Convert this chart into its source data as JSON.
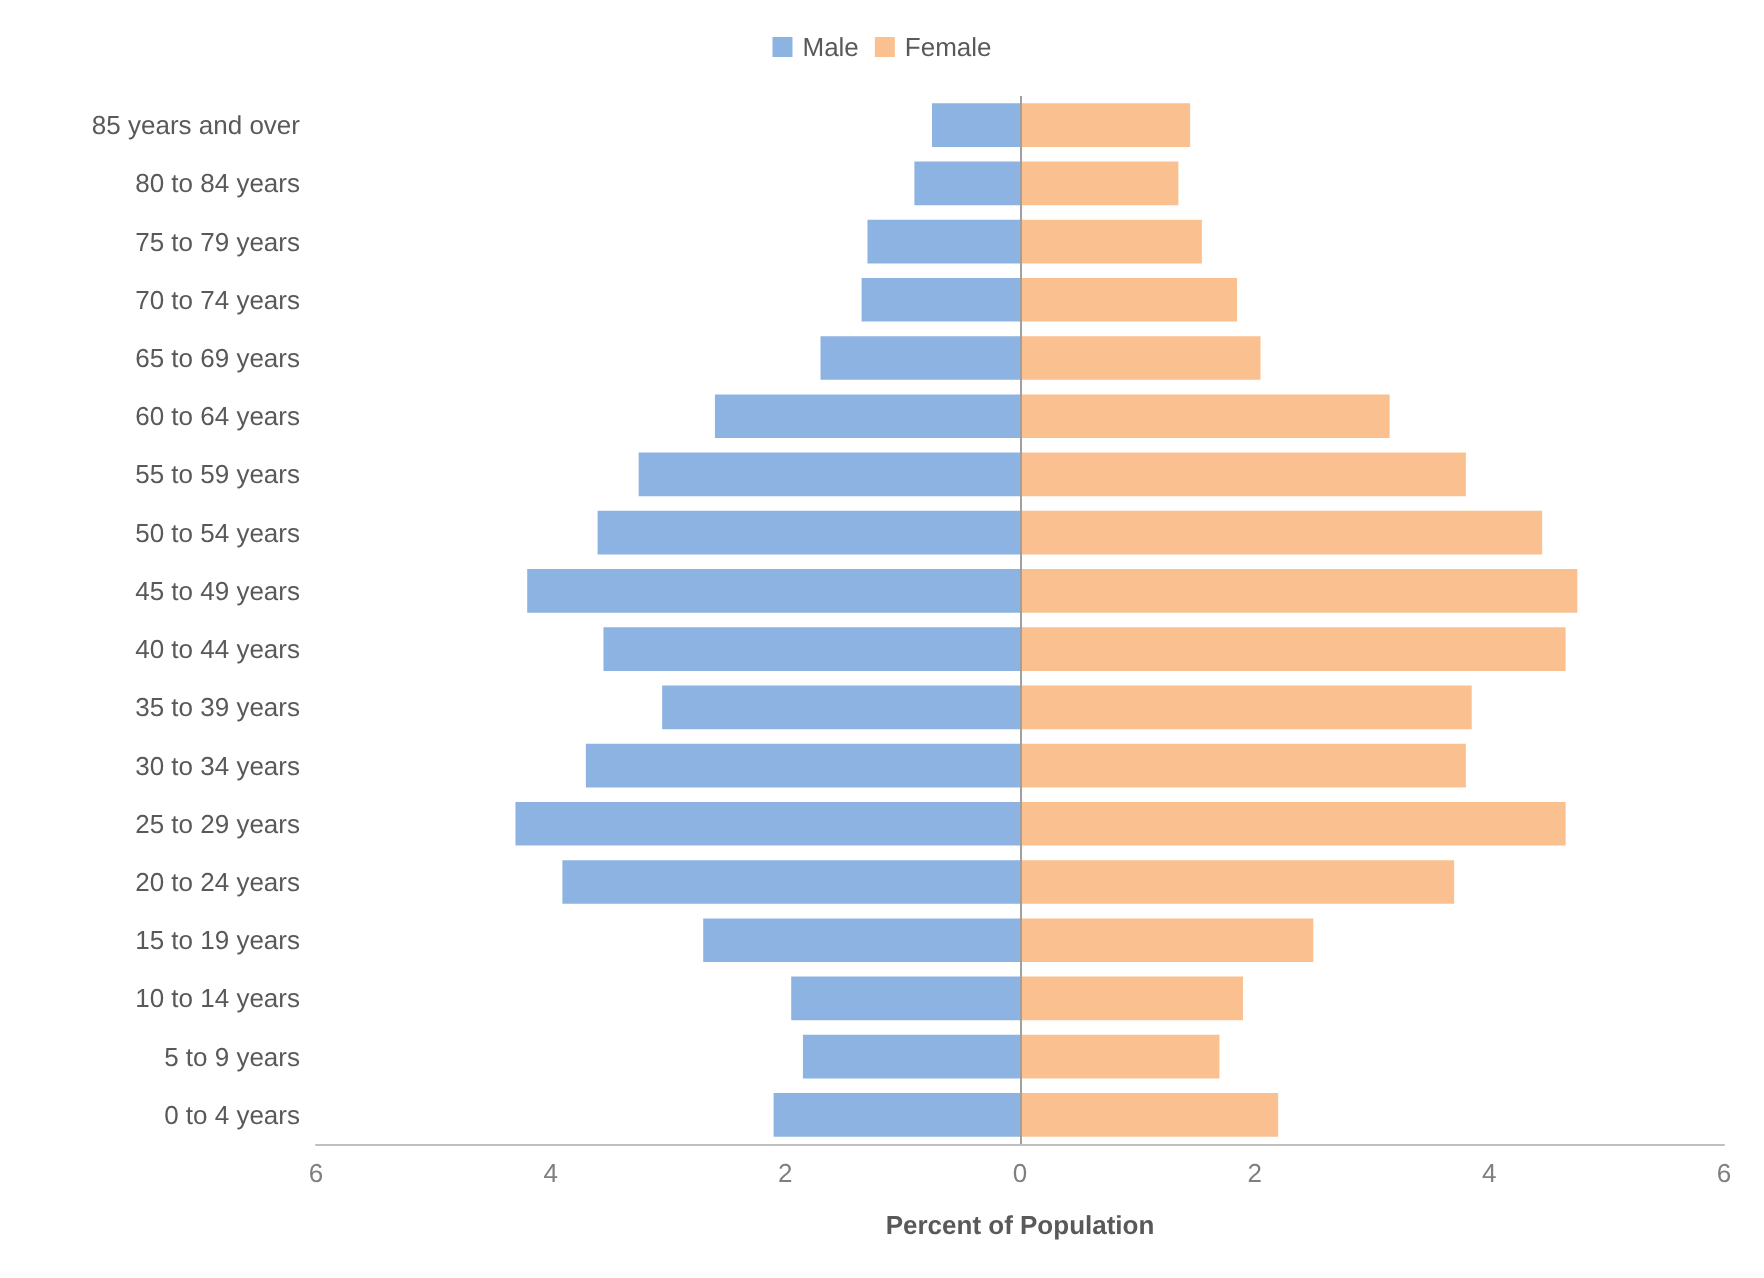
{
  "chart_data": {
    "type": "bar",
    "orientation": "horizontal",
    "xlabel": "Percent of Population",
    "categories": [
      "85 years and over",
      "80 to 84 years",
      "75 to 79 years",
      "70 to 74 years",
      "65 to 69 years",
      "60 to 64 years",
      "55 to 59 years",
      "50 to 54 years",
      "45 to 49 years",
      "40 to 44 years",
      "35 to 39 years",
      "30 to 34 years",
      "25 to 29 years",
      "20 to 24 years",
      "15 to 19 years",
      "10 to 14 years",
      "5 to 9 years",
      "0 to 4 years"
    ],
    "series": [
      {
        "name": "Male",
        "color": "#8db3e2",
        "values": [
          -0.75,
          -0.9,
          -1.3,
          -1.35,
          -1.7,
          -2.6,
          -3.25,
          -3.6,
          -4.2,
          -3.55,
          -3.05,
          -3.7,
          -4.3,
          -3.9,
          -2.7,
          -1.95,
          -1.85,
          -2.1
        ]
      },
      {
        "name": "Female",
        "color": "#fac090",
        "values": [
          1.45,
          1.35,
          1.55,
          1.85,
          2.05,
          3.15,
          3.8,
          4.45,
          4.75,
          4.65,
          3.85,
          3.8,
          4.65,
          3.7,
          2.5,
          1.9,
          1.7,
          2.2
        ]
      }
    ],
    "xlim": [
      -6,
      6
    ],
    "xticks": [
      {
        "value": -6,
        "label": "6"
      },
      {
        "value": -4,
        "label": "4"
      },
      {
        "value": -2,
        "label": "2"
      },
      0,
      2,
      4,
      6
    ],
    "grid": false,
    "legend": "top",
    "stacked": true,
    "ref_lines": [
      {
        "axis": "x",
        "value": 0,
        "color": "#a0a0a0"
      }
    ]
  }
}
